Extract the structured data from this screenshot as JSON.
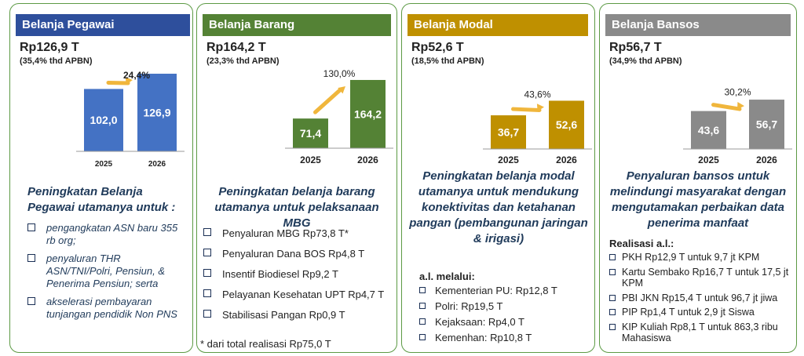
{
  "colors": {
    "border": "#5c9a44",
    "pegawai": "#4472c4",
    "pegawai_header": "#2e4f9c",
    "barang": "#548235",
    "modal": "#bf9000",
    "bansos": "#8a8a8a",
    "arrow": "#f0b63c",
    "heading_text": "#1f3a5a"
  },
  "panels": [
    {
      "header": "Belanja Pegawai",
      "amount": "Rp126,9 T",
      "share": "(35,4% thd APBN)",
      "heading": "Peningkatan Belanja Pegawai utamanya untuk :",
      "items": [
        "pengangkatan ASN baru 355 rb org;",
        "penyaluran THR ASN/TNI/Polri, Pensiun, & Penerima Pensiun; serta",
        "akselerasi pembayaran tunjangan pendidik Non PNS"
      ]
    },
    {
      "header": "Belanja Barang",
      "amount": "Rp164,2 T",
      "share": "(23,3% thd APBN)",
      "heading": "Peningkatan belanja barang utamanya untuk pelaksanaan MBG",
      "items": [
        "Penyaluran MBG Rp73,8 T*",
        "Penyaluran Dana BOS Rp4,8 T",
        "Insentif Biodiesel Rp9,2 T",
        "Pelayanan Kesehatan UPT Rp4,7 T",
        "Stabilisasi Pangan Rp0,9 T"
      ],
      "footnote": "*  dari total realisasi Rp75,0 T"
    },
    {
      "header": "Belanja Modal",
      "amount": "Rp52,6 T",
      "share": "(18,5% thd APBN)",
      "heading": "Peningkatan belanja modal utamanya untuk mendukung konektivitas dan ketahanan pangan (pembangunan jaringan & irigasi)",
      "sublabel": "a.l. melalui:",
      "items": [
        "Kementerian PU: Rp12,8 T",
        "Polri: Rp19,5 T",
        "Kejaksaan: Rp4,0 T",
        "Kemenhan: Rp10,8 T"
      ]
    },
    {
      "header": "Belanja Bansos",
      "amount": "Rp56,7 T",
      "share": "(34,9% thd APBN)",
      "heading": "Penyaluran bansos untuk melindungi masyarakat dengan mengutamakan perbaikan data penerima manfaat",
      "sublabel": "Realisasi a.l.:",
      "items": [
        "PKH Rp12,9 T untuk 9,7 jt KPM",
        "Kartu Sembako Rp16,7 T untuk 17,5 jt KPM",
        "PBI JKN Rp15,4 T untuk 96,7 jt jiwa",
        "PIP Rp1,4 T untuk 2,9 jt Siswa",
        "KIP Kuliah Rp8,1 T untuk 863,3 ribu Mahasiswa"
      ]
    }
  ],
  "chart_data": [
    {
      "type": "bar",
      "categories": [
        "2025",
        "2026"
      ],
      "values": [
        102.0,
        126.9
      ],
      "value_labels": [
        "102,0",
        "126,9"
      ],
      "growth_label": "24,4%",
      "color": "#4472c4"
    },
    {
      "type": "bar",
      "categories": [
        "2025",
        "2026"
      ],
      "values": [
        71.4,
        164.2
      ],
      "value_labels": [
        "71,4",
        "164,2"
      ],
      "growth_label": "130,0%",
      "color": "#548235"
    },
    {
      "type": "bar",
      "categories": [
        "2025",
        "2026"
      ],
      "values": [
        36.7,
        52.6
      ],
      "value_labels": [
        "36,7",
        "52,6"
      ],
      "growth_label": "43,6%",
      "color": "#bf9000"
    },
    {
      "type": "bar",
      "categories": [
        "2025",
        "2026"
      ],
      "values": [
        43.6,
        56.7
      ],
      "value_labels": [
        "43,6",
        "56,7"
      ],
      "growth_label": "30,2%",
      "color": "#8a8a8a"
    }
  ]
}
